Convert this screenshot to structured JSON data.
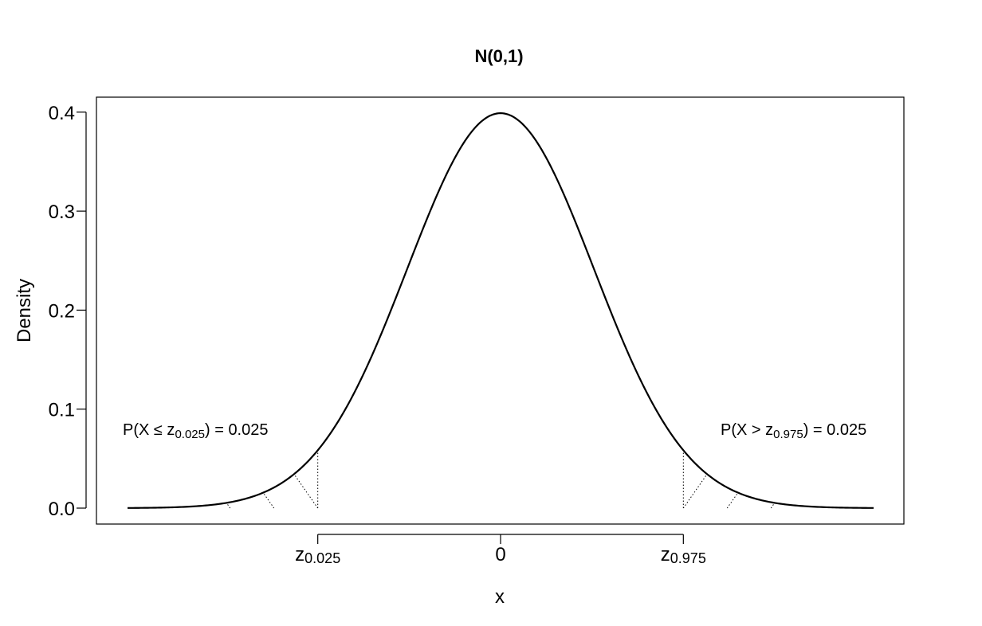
{
  "chart_data": {
    "type": "line",
    "title": "N(0,1)",
    "xlabel": "x",
    "ylabel": "Density",
    "xlim": [
      -3.8,
      3.8
    ],
    "ylim": [
      0,
      0.4
    ],
    "yticks": [
      "0.0",
      "0.1",
      "0.2",
      "0.3",
      "0.4"
    ],
    "ytick_values": [
      0,
      0.1,
      0.2,
      0.3,
      0.4
    ],
    "xticks": [
      {
        "value": -1.96,
        "main": "z",
        "sub": "0.025"
      },
      {
        "value": 0,
        "main": "0",
        "sub": ""
      },
      {
        "value": 1.96,
        "main": "z",
        "sub": "0.975"
      }
    ],
    "series": [
      {
        "function": "standard normal density",
        "mean": 0,
        "sd": 1,
        "x_range": [
          -4,
          4
        ],
        "color": "#000000"
      }
    ],
    "critical_values": [
      -1.96,
      1.96
    ],
    "tail_hatching": "dotted",
    "annotations": {
      "left": {
        "pre": "P(X ≤ z",
        "sub": "0.025",
        "post": ") = 0.025"
      },
      "right": {
        "pre": "P(X > z",
        "sub": "0.975",
        "post": ") = 0.025"
      }
    },
    "grid": false,
    "legend": "none"
  }
}
